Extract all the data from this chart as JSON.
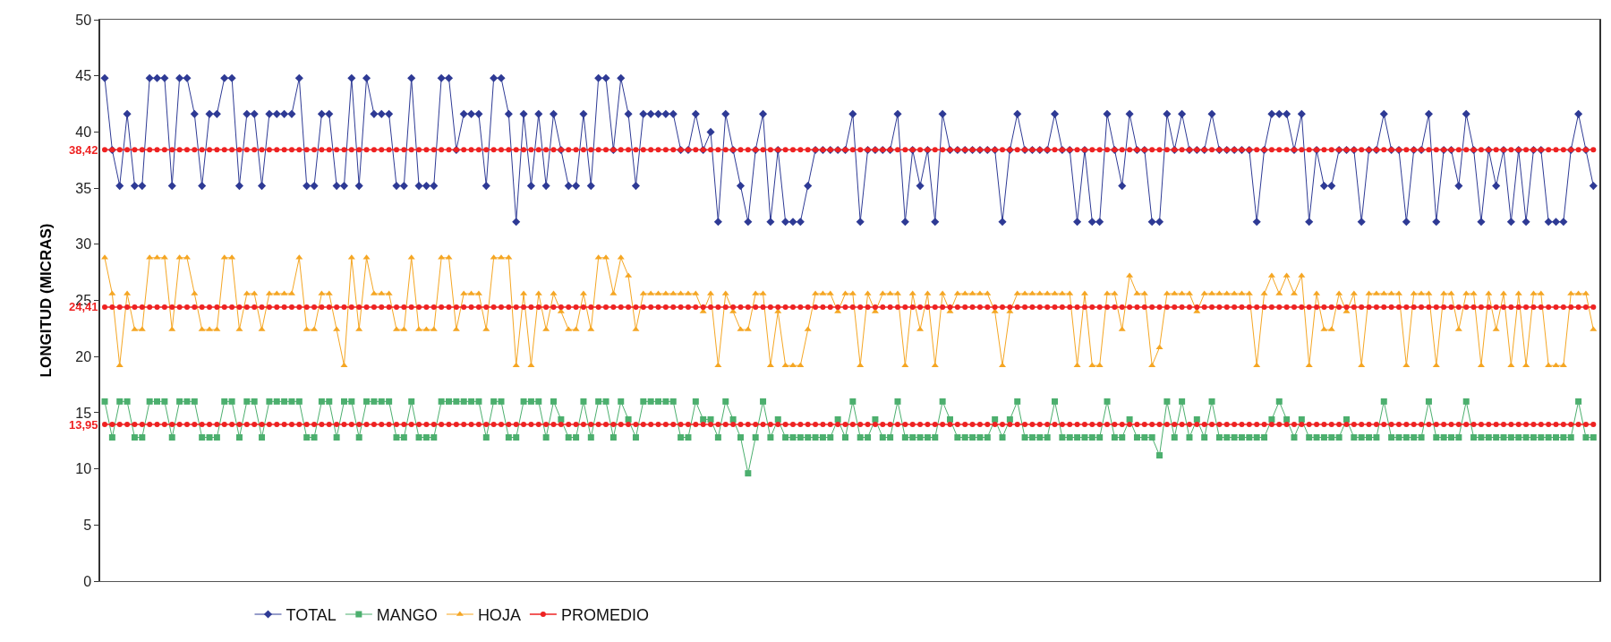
{
  "chart_data": {
    "type": "line",
    "ylabel": "LONGITUD (MICRAS)",
    "ylim": [
      0,
      50
    ],
    "yticks": [
      0,
      5,
      10,
      15,
      20,
      25,
      30,
      35,
      40,
      45,
      50
    ],
    "grid": false,
    "legend": "bottom",
    "line_style": "solid",
    "categories": [
      null,
      null,
      null,
      null,
      null,
      null,
      null,
      null,
      null,
      null,
      null,
      null,
      null,
      null,
      null,
      null,
      null,
      null,
      null,
      null,
      null,
      null,
      null,
      null,
      null,
      null,
      null,
      null,
      null,
      null,
      null,
      null,
      null,
      null,
      null,
      null,
      null,
      null,
      null,
      null,
      null,
      null,
      null,
      null,
      null,
      null,
      null,
      null,
      null,
      null,
      null,
      null,
      null,
      null,
      null,
      null,
      null,
      null,
      null,
      null,
      null,
      null,
      null,
      null,
      null,
      null,
      null,
      null,
      null,
      null,
      null,
      null,
      null,
      null,
      null,
      null,
      null,
      null,
      null,
      null,
      null,
      null,
      null,
      null,
      null,
      null,
      null,
      null,
      null,
      null,
      null,
      null,
      null,
      null,
      null,
      null,
      null,
      null,
      null,
      null,
      null,
      null,
      null,
      null,
      null,
      null,
      null,
      null,
      null,
      null,
      null,
      null,
      null,
      null,
      null,
      null,
      null,
      null,
      null,
      null,
      null,
      null,
      null,
      null,
      null,
      null,
      null,
      null,
      null,
      null,
      null,
      null,
      null,
      null,
      null,
      null,
      null,
      null,
      null,
      null,
      null,
      null,
      null,
      null,
      null,
      null,
      null,
      null,
      null,
      null,
      null,
      null,
      null,
      null,
      null,
      null,
      null,
      null,
      null,
      null,
      null,
      null,
      null,
      null,
      null,
      null,
      null,
      null,
      null,
      null,
      null,
      null,
      null,
      null,
      null,
      null,
      null,
      null,
      null,
      null,
      null,
      null,
      null,
      null,
      null,
      null,
      null,
      null,
      null,
      null,
      null,
      null,
      null,
      null,
      null,
      null,
      null,
      null,
      null,
      null
    ],
    "series": [
      {
        "name": "TOTAL",
        "color": "#2e3a95",
        "marker": "diamond",
        "values": [
          44.8,
          38.4,
          35.2,
          41.6,
          35.2,
          35.2,
          44.8,
          44.8,
          44.8,
          35.2,
          44.8,
          44.8,
          41.6,
          35.2,
          41.6,
          41.6,
          44.8,
          44.8,
          35.2,
          41.6,
          41.6,
          35.2,
          41.6,
          41.6,
          41.6,
          41.6,
          44.8,
          35.2,
          35.2,
          41.6,
          41.6,
          35.2,
          35.2,
          44.8,
          35.2,
          44.8,
          41.6,
          41.6,
          41.6,
          35.2,
          35.2,
          44.8,
          35.2,
          35.2,
          35.2,
          44.8,
          44.8,
          38.4,
          41.6,
          41.6,
          41.6,
          35.2,
          44.8,
          44.8,
          41.6,
          32,
          41.6,
          35.2,
          41.6,
          35.2,
          41.6,
          38.4,
          35.2,
          35.2,
          41.6,
          35.2,
          44.8,
          44.8,
          38.4,
          44.8,
          41.6,
          35.2,
          41.6,
          41.6,
          41.6,
          41.6,
          41.6,
          38.4,
          38.4,
          41.6,
          38.4,
          40,
          32,
          41.6,
          38.4,
          35.2,
          32,
          38.4,
          41.6,
          32,
          38.4,
          32,
          32,
          32,
          35.2,
          38.4,
          38.4,
          38.4,
          38.4,
          38.4,
          41.6,
          32,
          38.4,
          38.4,
          38.4,
          38.4,
          41.6,
          32,
          38.4,
          35.2,
          38.4,
          32,
          41.6,
          38.4,
          38.4,
          38.4,
          38.4,
          38.4,
          38.4,
          38.4,
          32,
          38.4,
          41.6,
          38.4,
          38.4,
          38.4,
          38.4,
          41.6,
          38.4,
          38.4,
          32,
          38.4,
          32,
          32,
          41.6,
          38.4,
          35.2,
          41.6,
          38.4,
          38.4,
          32,
          32,
          41.6,
          38.4,
          41.6,
          38.4,
          38.4,
          38.4,
          41.6,
          38.4,
          38.4,
          38.4,
          38.4,
          38.4,
          32,
          38.4,
          41.6,
          41.6,
          41.6,
          38.4,
          41.6,
          32,
          38.4,
          35.2,
          35.2,
          38.4,
          38.4,
          38.4,
          32,
          38.4,
          38.4,
          41.6,
          38.4,
          38.4,
          32,
          38.4,
          38.4,
          41.6,
          32,
          38.4,
          38.4,
          35.2,
          41.6,
          38.4,
          32,
          38.4,
          35.2,
          38.4,
          32,
          38.4,
          32,
          38.4,
          38.4,
          32,
          32,
          32,
          38.4,
          41.6,
          38.4,
          35.2
        ]
      },
      {
        "name": "MANGO",
        "color": "#4caf6e",
        "marker": "square",
        "values": [
          16,
          12.8,
          16,
          16,
          12.8,
          12.8,
          16,
          16,
          16,
          12.8,
          16,
          16,
          16,
          12.8,
          12.8,
          12.8,
          16,
          16,
          12.8,
          16,
          16,
          12.8,
          16,
          16,
          16,
          16,
          16,
          12.8,
          12.8,
          16,
          16,
          12.8,
          16,
          16,
          12.8,
          16,
          16,
          16,
          16,
          12.8,
          12.8,
          16,
          12.8,
          12.8,
          12.8,
          16,
          16,
          16,
          16,
          16,
          16,
          12.8,
          16,
          16,
          12.8,
          12.8,
          16,
          16,
          16,
          12.8,
          16,
          14.4,
          12.8,
          12.8,
          16,
          12.8,
          16,
          16,
          12.8,
          16,
          14.4,
          12.8,
          16,
          16,
          16,
          16,
          16,
          12.8,
          12.8,
          16,
          14.4,
          14.4,
          12.8,
          16,
          14.4,
          12.8,
          9.6,
          12.8,
          16,
          12.8,
          14.4,
          12.8,
          12.8,
          12.8,
          12.8,
          12.8,
          12.8,
          12.8,
          14.4,
          12.8,
          16,
          12.8,
          12.8,
          14.4,
          12.8,
          12.8,
          16,
          12.8,
          12.8,
          12.8,
          12.8,
          12.8,
          16,
          14.4,
          12.8,
          12.8,
          12.8,
          12.8,
          12.8,
          14.4,
          12.8,
          14.4,
          16,
          12.8,
          12.8,
          12.8,
          12.8,
          16,
          12.8,
          12.8,
          12.8,
          12.8,
          12.8,
          12.8,
          16,
          12.8,
          12.8,
          14.4,
          12.8,
          12.8,
          12.8,
          11.2,
          16,
          12.8,
          16,
          12.8,
          14.4,
          12.8,
          16,
          12.8,
          12.8,
          12.8,
          12.8,
          12.8,
          12.8,
          12.8,
          14.4,
          16,
          14.4,
          12.8,
          14.4,
          12.8,
          12.8,
          12.8,
          12.8,
          12.8,
          14.4,
          12.8,
          12.8,
          12.8,
          12.8,
          16,
          12.8,
          12.8,
          12.8,
          12.8,
          12.8,
          16,
          12.8,
          12.8,
          12.8,
          12.8,
          16,
          12.8,
          12.8,
          12.8,
          12.8,
          12.8,
          12.8,
          12.8,
          12.8,
          12.8,
          12.8,
          12.8,
          12.8,
          12.8,
          12.8,
          16,
          12.8,
          12.8
        ]
      },
      {
        "name": "HOJA",
        "color": "#f5a623",
        "marker": "triangle",
        "values": [
          28.8,
          25.6,
          19.2,
          25.6,
          22.4,
          22.4,
          28.8,
          28.8,
          28.8,
          22.4,
          28.8,
          28.8,
          25.6,
          22.4,
          22.4,
          22.4,
          28.8,
          28.8,
          22.4,
          25.6,
          25.6,
          22.4,
          25.6,
          25.6,
          25.6,
          25.6,
          28.8,
          22.4,
          22.4,
          25.6,
          25.6,
          22.4,
          19.2,
          28.8,
          22.4,
          28.8,
          25.6,
          25.6,
          25.6,
          22.4,
          22.4,
          28.8,
          22.4,
          22.4,
          22.4,
          28.8,
          28.8,
          22.4,
          25.6,
          25.6,
          25.6,
          22.4,
          28.8,
          28.8,
          28.8,
          19.2,
          25.6,
          19.2,
          25.6,
          22.4,
          25.6,
          24,
          22.4,
          22.4,
          25.6,
          22.4,
          28.8,
          28.8,
          25.6,
          28.8,
          27.2,
          22.4,
          25.6,
          25.6,
          25.6,
          25.6,
          25.6,
          25.6,
          25.6,
          25.6,
          24,
          25.6,
          19.2,
          25.6,
          24,
          22.4,
          22.4,
          25.6,
          25.6,
          19.2,
          24,
          19.2,
          19.2,
          19.2,
          22.4,
          25.6,
          25.6,
          25.6,
          24,
          25.6,
          25.6,
          19.2,
          25.6,
          24,
          25.6,
          25.6,
          25.6,
          19.2,
          25.6,
          22.4,
          25.6,
          19.2,
          25.6,
          24,
          25.6,
          25.6,
          25.6,
          25.6,
          25.6,
          24,
          19.2,
          24,
          25.6,
          25.6,
          25.6,
          25.6,
          25.6,
          25.6,
          25.6,
          25.6,
          19.2,
          25.6,
          19.2,
          19.2,
          25.6,
          25.6,
          22.4,
          27.2,
          25.6,
          25.6,
          19.2,
          20.8,
          25.6,
          25.6,
          25.6,
          25.6,
          24,
          25.6,
          25.6,
          25.6,
          25.6,
          25.6,
          25.6,
          25.6,
          19.2,
          25.6,
          27.2,
          25.6,
          27.2,
          25.6,
          27.2,
          19.2,
          25.6,
          22.4,
          22.4,
          25.6,
          24,
          25.6,
          19.2,
          25.6,
          25.6,
          25.6,
          25.6,
          25.6,
          19.2,
          25.6,
          25.6,
          25.6,
          19.2,
          25.6,
          25.6,
          22.4,
          25.6,
          25.6,
          19.2,
          25.6,
          22.4,
          25.6,
          19.2,
          25.6,
          19.2,
          25.6,
          25.6,
          19.2,
          19.2,
          19.2,
          25.6,
          25.6,
          25.6,
          22.4
        ]
      },
      {
        "name": "PROMEDIO",
        "color": "#ee2222",
        "marker": "circle",
        "values": [
          38.42,
          38.42,
          38.42,
          38.42,
          38.42,
          38.42,
          38.42,
          38.42,
          38.42,
          38.42,
          38.42,
          38.42,
          38.42,
          38.42,
          38.42,
          38.42,
          38.42,
          38.42,
          38.42,
          38.42,
          38.42,
          38.42,
          38.42,
          38.42,
          38.42,
          38.42,
          38.42,
          38.42,
          38.42,
          38.42,
          38.42,
          38.42,
          38.42,
          38.42,
          38.42,
          38.42,
          38.42,
          38.42,
          38.42,
          38.42,
          38.42,
          38.42,
          38.42,
          38.42,
          38.42,
          38.42,
          38.42,
          38.42,
          38.42,
          38.42,
          38.42,
          38.42,
          38.42,
          38.42,
          38.42,
          38.42,
          38.42,
          38.42,
          38.42,
          38.42,
          38.42,
          38.42,
          38.42,
          38.42,
          38.42,
          38.42,
          38.42,
          38.42,
          38.42,
          38.42,
          38.42,
          38.42,
          38.42,
          38.42,
          38.42,
          38.42,
          38.42,
          38.42,
          38.42,
          38.42,
          38.42,
          38.42,
          38.42,
          38.42,
          38.42,
          38.42,
          38.42,
          38.42,
          38.42,
          38.42,
          38.42,
          38.42,
          38.42,
          38.42,
          38.42,
          38.42,
          38.42,
          38.42,
          38.42,
          38.42,
          38.42,
          38.42,
          38.42,
          38.42,
          38.42,
          38.42,
          38.42,
          38.42,
          38.42,
          38.42,
          38.42,
          38.42,
          38.42,
          38.42,
          38.42,
          38.42,
          38.42,
          38.42,
          38.42,
          38.42,
          38.42,
          38.42,
          38.42,
          38.42,
          38.42,
          38.42,
          38.42,
          38.42,
          38.42,
          38.42,
          38.42,
          38.42,
          38.42,
          38.42,
          38.42,
          38.42,
          38.42,
          38.42,
          38.42,
          38.42,
          38.42,
          38.42,
          38.42,
          38.42,
          38.42,
          38.42,
          38.42,
          38.42,
          38.42,
          38.42,
          38.42,
          38.42,
          38.42,
          38.42,
          38.42,
          38.42,
          38.42,
          38.42,
          38.42,
          38.42,
          38.42,
          38.42,
          38.42,
          38.42,
          38.42,
          38.42,
          38.42,
          38.42,
          38.42,
          38.42,
          38.42,
          38.42,
          38.42,
          38.42,
          38.42,
          38.42,
          38.42,
          38.42,
          38.42,
          38.42,
          38.42,
          38.42,
          38.42,
          38.42,
          38.42,
          38.42,
          38.42,
          38.42,
          38.42,
          38.42,
          38.42,
          38.42,
          38.42,
          38.42,
          38.42,
          38.42,
          38.42,
          38.42,
          38.42,
          38.42
        ]
      },
      {
        "color": "#ee2222",
        "marker": "circle",
        "values": [
          24.41,
          24.41,
          24.41,
          24.41,
          24.41,
          24.41,
          24.41,
          24.41,
          24.41,
          24.41,
          24.41,
          24.41,
          24.41,
          24.41,
          24.41,
          24.41,
          24.41,
          24.41,
          24.41,
          24.41,
          24.41,
          24.41,
          24.41,
          24.41,
          24.41,
          24.41,
          24.41,
          24.41,
          24.41,
          24.41,
          24.41,
          24.41,
          24.41,
          24.41,
          24.41,
          24.41,
          24.41,
          24.41,
          24.41,
          24.41,
          24.41,
          24.41,
          24.41,
          24.41,
          24.41,
          24.41,
          24.41,
          24.41,
          24.41,
          24.41,
          24.41,
          24.41,
          24.41,
          24.41,
          24.41,
          24.41,
          24.41,
          24.41,
          24.41,
          24.41,
          24.41,
          24.41,
          24.41,
          24.41,
          24.41,
          24.41,
          24.41,
          24.41,
          24.41,
          24.41,
          24.41,
          24.41,
          24.41,
          24.41,
          24.41,
          24.41,
          24.41,
          24.41,
          24.41,
          24.41,
          24.41,
          24.41,
          24.41,
          24.41,
          24.41,
          24.41,
          24.41,
          24.41,
          24.41,
          24.41,
          24.41,
          24.41,
          24.41,
          24.41,
          24.41,
          24.41,
          24.41,
          24.41,
          24.41,
          24.41,
          24.41,
          24.41,
          24.41,
          24.41,
          24.41,
          24.41,
          24.41,
          24.41,
          24.41,
          24.41,
          24.41,
          24.41,
          24.41,
          24.41,
          24.41,
          24.41,
          24.41,
          24.41,
          24.41,
          24.41,
          24.41,
          24.41,
          24.41,
          24.41,
          24.41,
          24.41,
          24.41,
          24.41,
          24.41,
          24.41,
          24.41,
          24.41,
          24.41,
          24.41,
          24.41,
          24.41,
          24.41,
          24.41,
          24.41,
          24.41,
          24.41,
          24.41,
          24.41,
          24.41,
          24.41,
          24.41,
          24.41,
          24.41,
          24.41,
          24.41,
          24.41,
          24.41,
          24.41,
          24.41,
          24.41,
          24.41,
          24.41,
          24.41,
          24.41,
          24.41,
          24.41,
          24.41,
          24.41,
          24.41,
          24.41,
          24.41,
          24.41,
          24.41,
          24.41,
          24.41,
          24.41,
          24.41,
          24.41,
          24.41,
          24.41,
          24.41,
          24.41,
          24.41,
          24.41,
          24.41,
          24.41,
          24.41,
          24.41,
          24.41,
          24.41,
          24.41,
          24.41,
          24.41,
          24.41,
          24.41,
          24.41,
          24.41,
          24.41,
          24.41,
          24.41,
          24.41,
          24.41,
          24.41,
          24.41,
          24.41
        ]
      },
      {
        "color": "#ee2222",
        "marker": "circle",
        "values": [
          13.95,
          13.95,
          13.95,
          13.95,
          13.95,
          13.95,
          13.95,
          13.95,
          13.95,
          13.95,
          13.95,
          13.95,
          13.95,
          13.95,
          13.95,
          13.95,
          13.95,
          13.95,
          13.95,
          13.95,
          13.95,
          13.95,
          13.95,
          13.95,
          13.95,
          13.95,
          13.95,
          13.95,
          13.95,
          13.95,
          13.95,
          13.95,
          13.95,
          13.95,
          13.95,
          13.95,
          13.95,
          13.95,
          13.95,
          13.95,
          13.95,
          13.95,
          13.95,
          13.95,
          13.95,
          13.95,
          13.95,
          13.95,
          13.95,
          13.95,
          13.95,
          13.95,
          13.95,
          13.95,
          13.95,
          13.95,
          13.95,
          13.95,
          13.95,
          13.95,
          13.95,
          13.95,
          13.95,
          13.95,
          13.95,
          13.95,
          13.95,
          13.95,
          13.95,
          13.95,
          13.95,
          13.95,
          13.95,
          13.95,
          13.95,
          13.95,
          13.95,
          13.95,
          13.95,
          13.95,
          13.95,
          13.95,
          13.95,
          13.95,
          13.95,
          13.95,
          13.95,
          13.95,
          13.95,
          13.95,
          13.95,
          13.95,
          13.95,
          13.95,
          13.95,
          13.95,
          13.95,
          13.95,
          13.95,
          13.95,
          13.95,
          13.95,
          13.95,
          13.95,
          13.95,
          13.95,
          13.95,
          13.95,
          13.95,
          13.95,
          13.95,
          13.95,
          13.95,
          13.95,
          13.95,
          13.95,
          13.95,
          13.95,
          13.95,
          13.95,
          13.95,
          13.95,
          13.95,
          13.95,
          13.95,
          13.95,
          13.95,
          13.95,
          13.95,
          13.95,
          13.95,
          13.95,
          13.95,
          13.95,
          13.95,
          13.95,
          13.95,
          13.95,
          13.95,
          13.95,
          13.95,
          13.95,
          13.95,
          13.95,
          13.95,
          13.95,
          13.95,
          13.95,
          13.95,
          13.95,
          13.95,
          13.95,
          13.95,
          13.95,
          13.95,
          13.95,
          13.95,
          13.95,
          13.95,
          13.95,
          13.95,
          13.95,
          13.95,
          13.95,
          13.95,
          13.95,
          13.95,
          13.95,
          13.95,
          13.95,
          13.95,
          13.95,
          13.95,
          13.95,
          13.95,
          13.95,
          13.95,
          13.95,
          13.95,
          13.95,
          13.95,
          13.95,
          13.95,
          13.95,
          13.95,
          13.95,
          13.95,
          13.95,
          13.95,
          13.95,
          13.95,
          13.95,
          13.95,
          13.95,
          13.95,
          13.95,
          13.95,
          13.95,
          13.95,
          13.95
        ]
      }
    ],
    "annotations": [
      "38,42",
      "24,41",
      "13,95"
    ]
  }
}
